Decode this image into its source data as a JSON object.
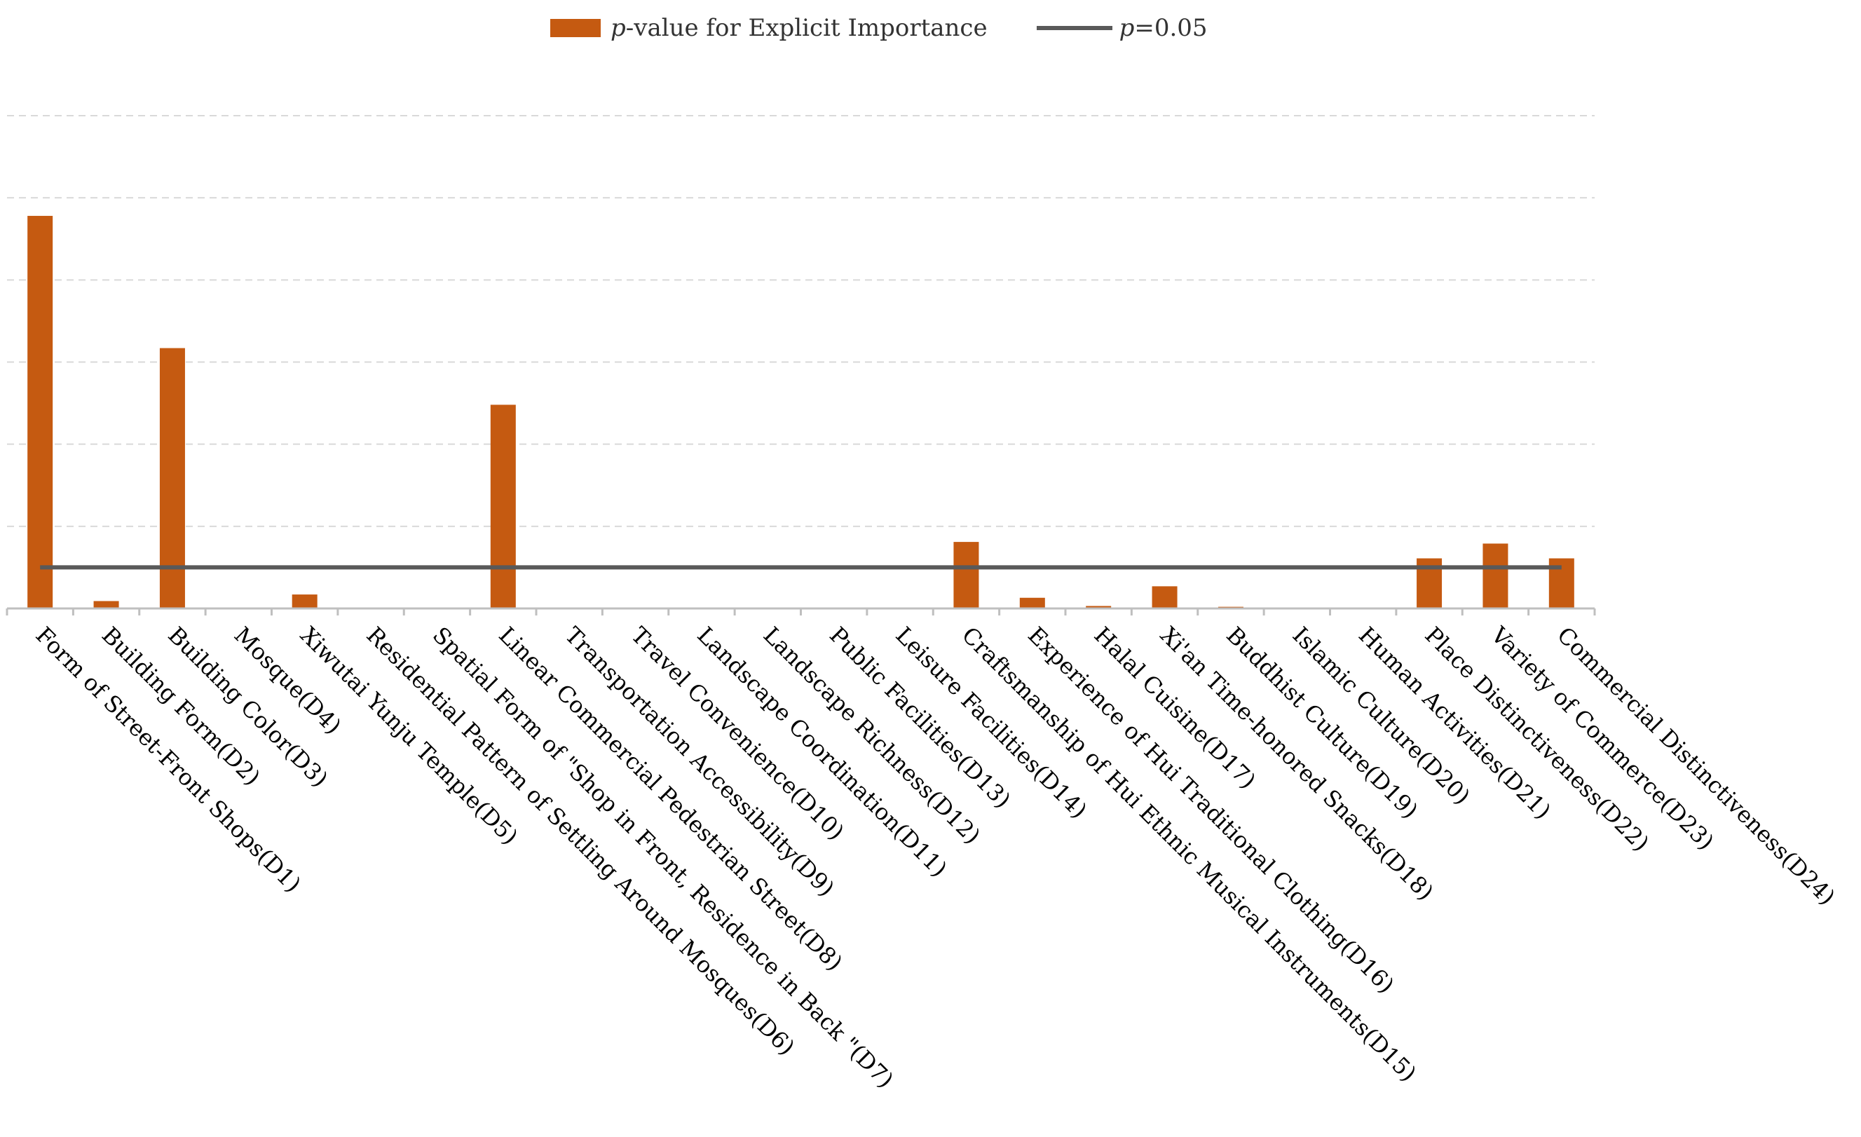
{
  "chart_data": {
    "type": "bar",
    "title": "",
    "xlabel": "",
    "ylabel": "",
    "ylim": [
      0,
      0.6
    ],
    "y_gridlines": [
      0.1,
      0.2,
      0.3,
      0.4,
      0.5,
      0.6
    ],
    "y_tick_labels_shown": false,
    "threshold": {
      "label_italic": "p",
      "label_rest": "=0.05",
      "value": 0.05
    },
    "series": [
      {
        "name": "p-value for Explicit Importance",
        "name_italic": "p",
        "name_rest": "-value for Explicit Importance",
        "color": "#c55a11",
        "values": [
          0.478,
          0.009,
          0.317,
          0.0,
          0.017,
          0.0,
          0.0,
          0.248,
          0.0,
          0.0,
          0.0,
          0.0,
          0.0,
          0.0,
          0.081,
          0.013,
          0.003,
          0.027,
          0.002,
          0.0,
          0.0,
          0.061,
          0.079,
          0.061
        ]
      }
    ],
    "threshold_color": "#595959",
    "categories": [
      "Form of Street-Front Shops(D1)",
      "Building Form(D2)",
      "Building Color(D3)",
      "Mosque(D4)",
      "Xiwutai Yunju Temple(D5)",
      "Residential Pattern of Settling Around Mosques(D6)",
      "Spatial Form of \"Shop in Front, Residence in Back \"(D7)",
      "Linear Commercial Pedestrian Street(D8)",
      "Transportation Accessibility(D9)",
      "Travel Convenience(D10)",
      "Landscape Coordination(D11)",
      "Landscape Richness(D12)",
      "Public Facilities(D13)",
      "Leisure Facilities(D14)",
      "Craftsmanship of Hui Ethnic Musical Instruments(D15)",
      "Experience of Hui Traditional Clothing(D16)",
      "Halal Cuisine(D17)",
      "Xi'an Time-honored Snacks(D18)",
      "Buddhist Culture(D19)",
      "Islamic Culture(D20)",
      "Human Activities(D21)",
      "Place Distinctiveness(D22)",
      "Variety of Commerce(D23)",
      "Commercial Distinctiveness(D24)"
    ]
  }
}
